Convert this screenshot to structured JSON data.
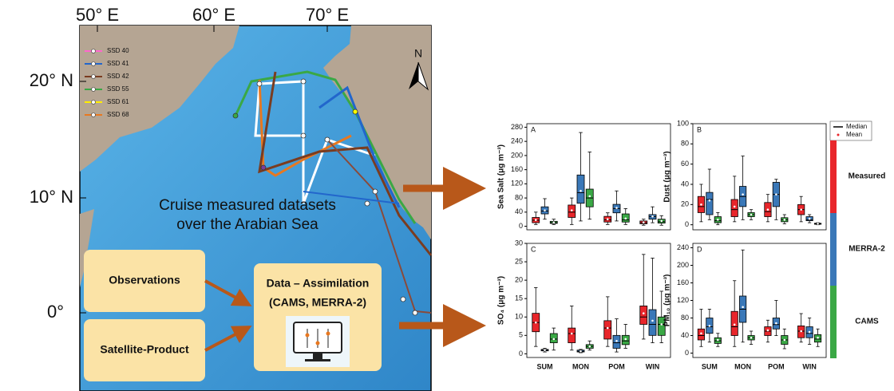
{
  "map": {
    "lon_labels": [
      "50° E",
      "60° E",
      "70° E"
    ],
    "lat_labels": [
      "20° N",
      "10° N",
      "0°"
    ],
    "north": "N",
    "cruises": [
      "SSD 40",
      "SSD 41",
      "SSD 42",
      "SSD 55",
      "SSD 61",
      "SSD 68"
    ],
    "caption": [
      "Cruise measured datasets",
      "over the Arabian Sea"
    ]
  },
  "flow": {
    "observations": "Observations",
    "satellite": "Satellite-Product",
    "assimilation": [
      "Data – Assimilation",
      "(CAMS, MERRA-2)"
    ]
  },
  "legend": {
    "median": "Median",
    "mean": "Mean",
    "groups": [
      {
        "name": "Measured",
        "color": "#e8262b"
      },
      {
        "name": "MERRA-2",
        "color": "#3a78b8"
      },
      {
        "name": "CAMS",
        "color": "#3aa845"
      }
    ]
  },
  "chart_data": [
    {
      "type": "box",
      "panel": "A",
      "ylabel": "Sea Salt (μg m⁻³)",
      "ylim": [
        -10,
        290
      ],
      "yticks": [
        0,
        40,
        80,
        120,
        160,
        200,
        240,
        280
      ],
      "series": [
        {
          "color": "#e8262b",
          "whislo": [
            5,
            5,
            5,
            3
          ],
          "q1": [
            10,
            25,
            12,
            7
          ],
          "med": [
            17,
            40,
            18,
            10
          ],
          "q3": [
            25,
            60,
            28,
            15
          ],
          "whishi": [
            40,
            80,
            38,
            20
          ],
          "mean": [
            18,
            45,
            20,
            11
          ]
        },
        {
          "color": "#3a78b8",
          "whislo": [
            20,
            15,
            15,
            10
          ],
          "q1": [
            35,
            65,
            38,
            20
          ],
          "med": [
            43,
            95,
            50,
            27
          ],
          "q3": [
            55,
            145,
            62,
            33
          ],
          "whishi": [
            78,
            265,
            100,
            55
          ],
          "mean": [
            45,
            100,
            52,
            28
          ]
        },
        {
          "color": "#3aa845",
          "whislo": [
            5,
            20,
            5,
            3
          ],
          "q1": [
            8,
            55,
            12,
            9
          ],
          "med": [
            10,
            80,
            18,
            13
          ],
          "q3": [
            14,
            105,
            35,
            20
          ],
          "whishi": [
            20,
            210,
            50,
            30
          ],
          "mean": [
            11,
            85,
            22,
            15
          ]
        }
      ]
    },
    {
      "type": "box",
      "panel": "B",
      "ylabel": "Dust (μg m⁻³)",
      "ylim": [
        -5,
        100
      ],
      "yticks": [
        0,
        20,
        40,
        60,
        80,
        100
      ],
      "series": [
        {
          "color": "#e8262b",
          "whislo": [
            3,
            3,
            3,
            3
          ],
          "q1": [
            12,
            8,
            8,
            10
          ],
          "med": [
            18,
            15,
            13,
            15
          ],
          "q3": [
            28,
            25,
            22,
            20
          ],
          "whishi": [
            40,
            48,
            30,
            28
          ],
          "mean": [
            20,
            18,
            15,
            15
          ]
        },
        {
          "color": "#3a78b8",
          "whislo": [
            5,
            5,
            5,
            2
          ],
          "q1": [
            10,
            18,
            18,
            4
          ],
          "med": [
            25,
            28,
            30,
            5
          ],
          "q3": [
            32,
            38,
            42,
            8
          ],
          "whishi": [
            55,
            68,
            45,
            10
          ],
          "mean": [
            24,
            30,
            30,
            6
          ]
        },
        {
          "color": "#3aa845",
          "whislo": [
            0,
            5,
            1,
            0
          ],
          "q1": [
            2,
            8,
            3,
            0.5
          ],
          "med": [
            4,
            10,
            5,
            1
          ],
          "q3": [
            8,
            12,
            7,
            1.5
          ],
          "whishi": [
            12,
            15,
            10,
            2
          ],
          "mean": [
            5,
            10,
            5,
            1
          ]
        }
      ]
    },
    {
      "type": "box",
      "panel": "C",
      "ylabel": "SO₄ (μg m⁻³)",
      "ylim": [
        -1,
        30
      ],
      "yticks": [
        0,
        5,
        10,
        15,
        20,
        25,
        30
      ],
      "categories": [
        "SUM",
        "MON",
        "POM",
        "WIN"
      ],
      "series": [
        {
          "color": "#e8262b",
          "whislo": [
            2,
            1,
            2,
            4
          ],
          "q1": [
            6,
            3,
            4,
            8
          ],
          "med": [
            8.5,
            5.5,
            7,
            10
          ],
          "q3": [
            11,
            7,
            9,
            13
          ],
          "whishi": [
            18,
            13,
            15.5,
            27
          ],
          "mean": [
            8.5,
            5.5,
            7,
            11
          ]
        },
        {
          "color": "#3a78b8",
          "whislo": [
            0.5,
            0.3,
            0.5,
            3
          ],
          "q1": [
            0.8,
            0.5,
            1.5,
            5
          ],
          "med": [
            1,
            0.7,
            3,
            8
          ],
          "q3": [
            1.2,
            1,
            5,
            12
          ],
          "whishi": [
            1.5,
            1.2,
            9.5,
            26
          ],
          "mean": [
            1,
            0.7,
            3.5,
            9
          ]
        },
        {
          "color": "#3aa845",
          "whislo": [
            1,
            1,
            1.5,
            3
          ],
          "q1": [
            3,
            1.5,
            2.5,
            5
          ],
          "med": [
            4,
            2,
            3.5,
            8
          ],
          "q3": [
            5.5,
            2.5,
            5,
            10
          ],
          "whishi": [
            7,
            3.5,
            8,
            17
          ],
          "mean": [
            4,
            2,
            4,
            8
          ]
        }
      ]
    },
    {
      "type": "box",
      "panel": "D",
      "ylabel": "PM₁₀ (μg m⁻³)",
      "ylim": [
        -10,
        250
      ],
      "yticks": [
        0,
        40,
        80,
        120,
        160,
        200,
        240
      ],
      "categories": [
        "SUM",
        "MON",
        "POM",
        "WIN"
      ],
      "series": [
        {
          "color": "#e8262b",
          "whislo": [
            15,
            15,
            25,
            25
          ],
          "q1": [
            30,
            40,
            40,
            35
          ],
          "med": [
            40,
            60,
            50,
            50
          ],
          "q3": [
            55,
            95,
            60,
            62
          ],
          "whishi": [
            100,
            165,
            75,
            90
          ],
          "mean": [
            45,
            65,
            52,
            50
          ]
        },
        {
          "color": "#3a78b8",
          "whislo": [
            25,
            25,
            40,
            20
          ],
          "q1": [
            45,
            70,
            55,
            35
          ],
          "med": [
            60,
            100,
            65,
            45
          ],
          "q3": [
            80,
            130,
            80,
            60
          ],
          "whishi": [
            100,
            235,
            120,
            80
          ],
          "mean": [
            62,
            105,
            68,
            48
          ]
        },
        {
          "color": "#3aa845",
          "whislo": [
            15,
            20,
            10,
            15
          ],
          "q1": [
            22,
            30,
            20,
            25
          ],
          "med": [
            28,
            35,
            30,
            32
          ],
          "q3": [
            35,
            40,
            40,
            42
          ],
          "whishi": [
            45,
            50,
            55,
            55
          ],
          "mean": [
            30,
            35,
            30,
            35
          ]
        }
      ]
    }
  ]
}
